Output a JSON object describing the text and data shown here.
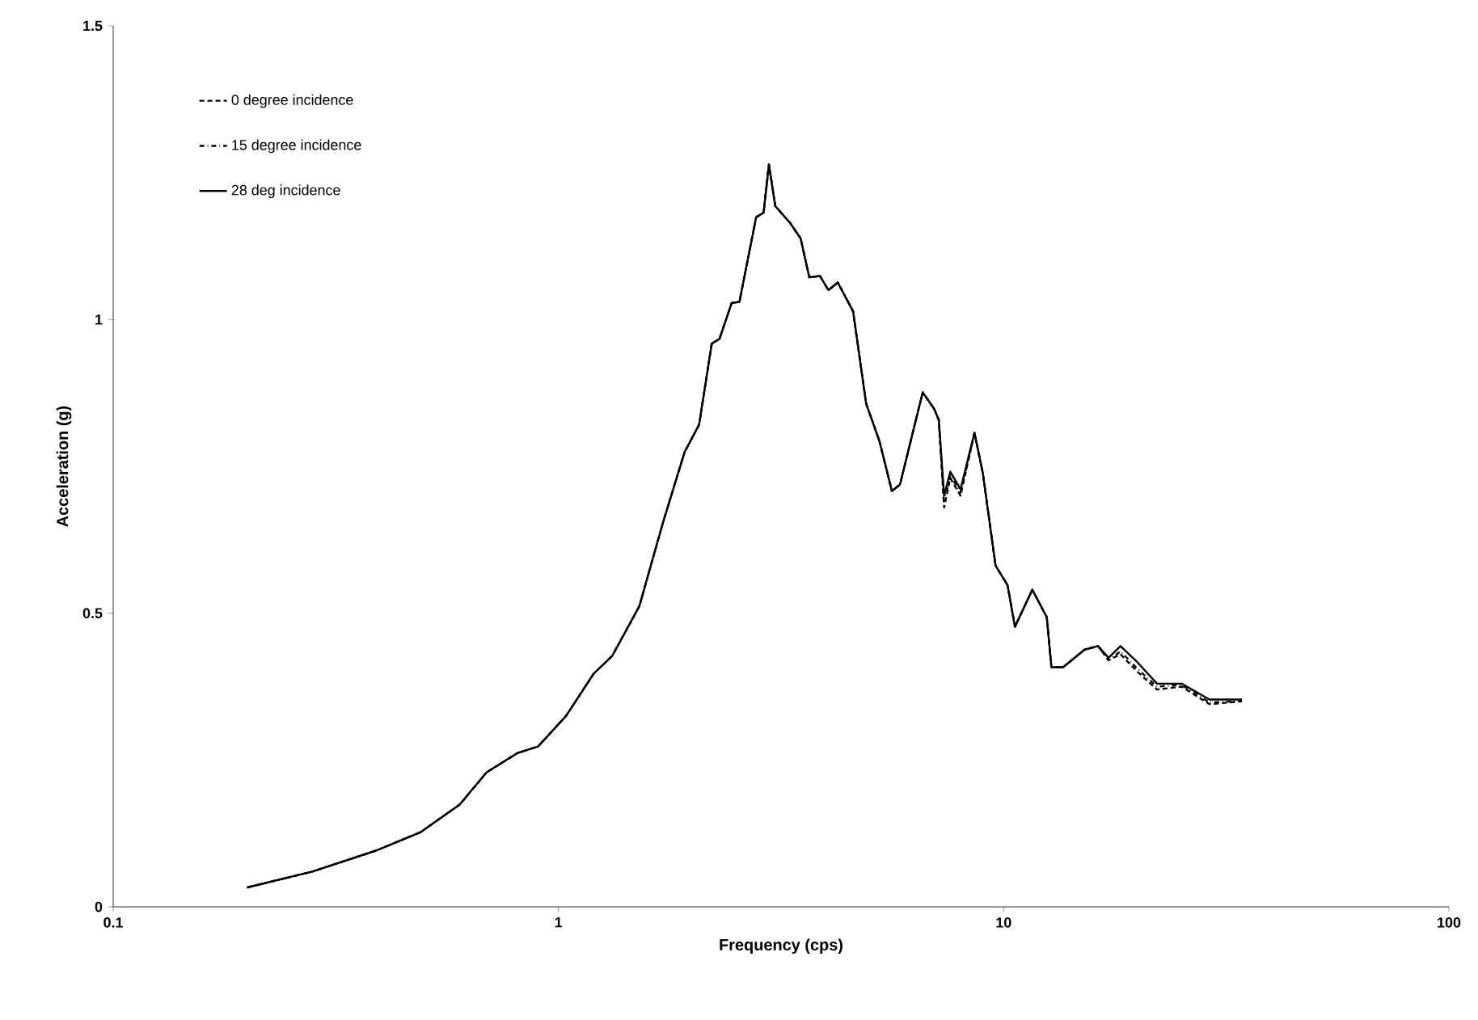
{
  "chart_data": {
    "type": "line",
    "xlabel": "Frequency (cps)",
    "ylabel": "Acceleration (g)",
    "log": "x",
    "grid": false,
    "legend": "top left",
    "marker": "none",
    "xlim": [
      0.1,
      100
    ],
    "xticks": [
      0.1,
      1,
      10,
      100
    ],
    "ylim": [
      0,
      1.5
    ],
    "yticks": [
      0,
      0.5,
      1,
      1.5
    ],
    "x": [
      0.2,
      0.28,
      0.39,
      0.49,
      0.6,
      0.69,
      0.81,
      0.9,
      1.04,
      1.2,
      1.32,
      1.52,
      1.72,
      1.92,
      2.07,
      2.21,
      2.3,
      2.45,
      2.55,
      2.78,
      2.89,
      2.97,
      3.07,
      3.31,
      3.5,
      3.66,
      3.87,
      4.04,
      4.24,
      4.59,
      4.91,
      5.26,
      5.61,
      5.85,
      6.58,
      6.98,
      7.15,
      7.35,
      7.59,
      8.0,
      8.6,
      8.98,
      9.59,
      10.2,
      10.6,
      11.6,
      12.5,
      12.8,
      13.6,
      15.2,
      16.3,
      17.2,
      18.3,
      20.0,
      22.1,
      25.1,
      29,
      34.3
    ],
    "series": [
      {
        "name": "0 degree incidence",
        "color": "#000000",
        "line_style": "dotted",
        "values": [
          0.033,
          0.06,
          0.096,
          0.127,
          0.174,
          0.229,
          0.262,
          0.273,
          0.325,
          0.397,
          0.427,
          0.512,
          0.656,
          0.774,
          0.821,
          0.959,
          0.967,
          1.028,
          1.03,
          1.174,
          1.182,
          1.264,
          1.193,
          1.165,
          1.138,
          1.072,
          1.074,
          1.05,
          1.063,
          1.014,
          0.857,
          0.793,
          0.708,
          0.719,
          0.876,
          0.848,
          0.829,
          0.68,
          0.73,
          0.7,
          0.807,
          0.738,
          0.581,
          0.548,
          0.477,
          0.54,
          0.493,
          0.408,
          0.408,
          0.438,
          0.444,
          0.42,
          0.43,
          0.4,
          0.37,
          0.375,
          0.345,
          0.35
        ]
      },
      {
        "name": "15 degree incidence",
        "color": "#000000",
        "line_style": "dashed",
        "values": [
          0.033,
          0.06,
          0.096,
          0.127,
          0.174,
          0.229,
          0.262,
          0.273,
          0.325,
          0.397,
          0.427,
          0.512,
          0.656,
          0.774,
          0.821,
          0.959,
          0.967,
          1.028,
          1.03,
          1.174,
          1.182,
          1.264,
          1.193,
          1.165,
          1.138,
          1.072,
          1.074,
          1.05,
          1.063,
          1.014,
          0.857,
          0.793,
          0.708,
          0.719,
          0.876,
          0.848,
          0.829,
          0.69,
          0.735,
          0.705,
          0.807,
          0.738,
          0.581,
          0.548,
          0.477,
          0.54,
          0.493,
          0.408,
          0.408,
          0.438,
          0.444,
          0.42,
          0.435,
          0.405,
          0.375,
          0.378,
          0.348,
          0.35
        ]
      },
      {
        "name": "28 deg incidence",
        "color": "#000000",
        "line_style": "solid",
        "values": [
          0.033,
          0.06,
          0.096,
          0.127,
          0.174,
          0.229,
          0.262,
          0.273,
          0.325,
          0.397,
          0.427,
          0.512,
          0.656,
          0.774,
          0.821,
          0.959,
          0.967,
          1.028,
          1.03,
          1.174,
          1.182,
          1.264,
          1.193,
          1.165,
          1.138,
          1.072,
          1.074,
          1.05,
          1.063,
          1.014,
          0.857,
          0.793,
          0.708,
          0.719,
          0.876,
          0.848,
          0.829,
          0.7,
          0.741,
          0.711,
          0.807,
          0.738,
          0.581,
          0.548,
          0.477,
          0.54,
          0.493,
          0.408,
          0.408,
          0.438,
          0.444,
          0.424,
          0.444,
          0.416,
          0.38,
          0.38,
          0.353,
          0.353
        ]
      }
    ]
  }
}
